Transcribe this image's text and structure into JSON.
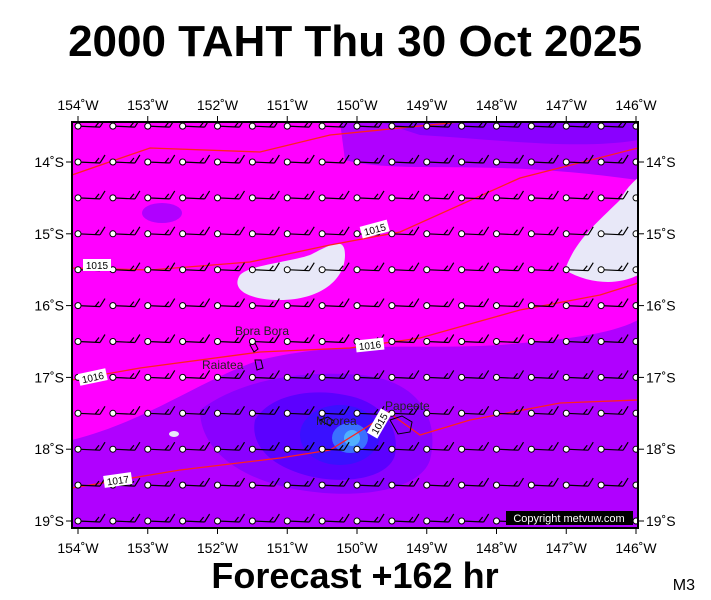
{
  "header": {
    "title": "2000 TAHT Thu 30 Oct 2025"
  },
  "footer": {
    "forecast": "Forecast +162 hr",
    "code": "M3"
  },
  "axes": {
    "longitudes": [
      "154˚W",
      "153˚W",
      "152˚W",
      "151˚W",
      "150˚W",
      "149˚W",
      "148˚W",
      "147˚W",
      "146˚W"
    ],
    "latitudes": [
      "14˚S",
      "15˚S",
      "16˚S",
      "17˚S",
      "18˚S",
      "19˚S"
    ]
  },
  "places": [
    "Bora Bora",
    "Raiatea",
    "Moorea",
    "Papeete"
  ],
  "isobars": [
    "1015",
    "1015",
    "1016",
    "1016",
    "1017",
    "1015"
  ],
  "copyright": "Copyright metvuw.com"
}
